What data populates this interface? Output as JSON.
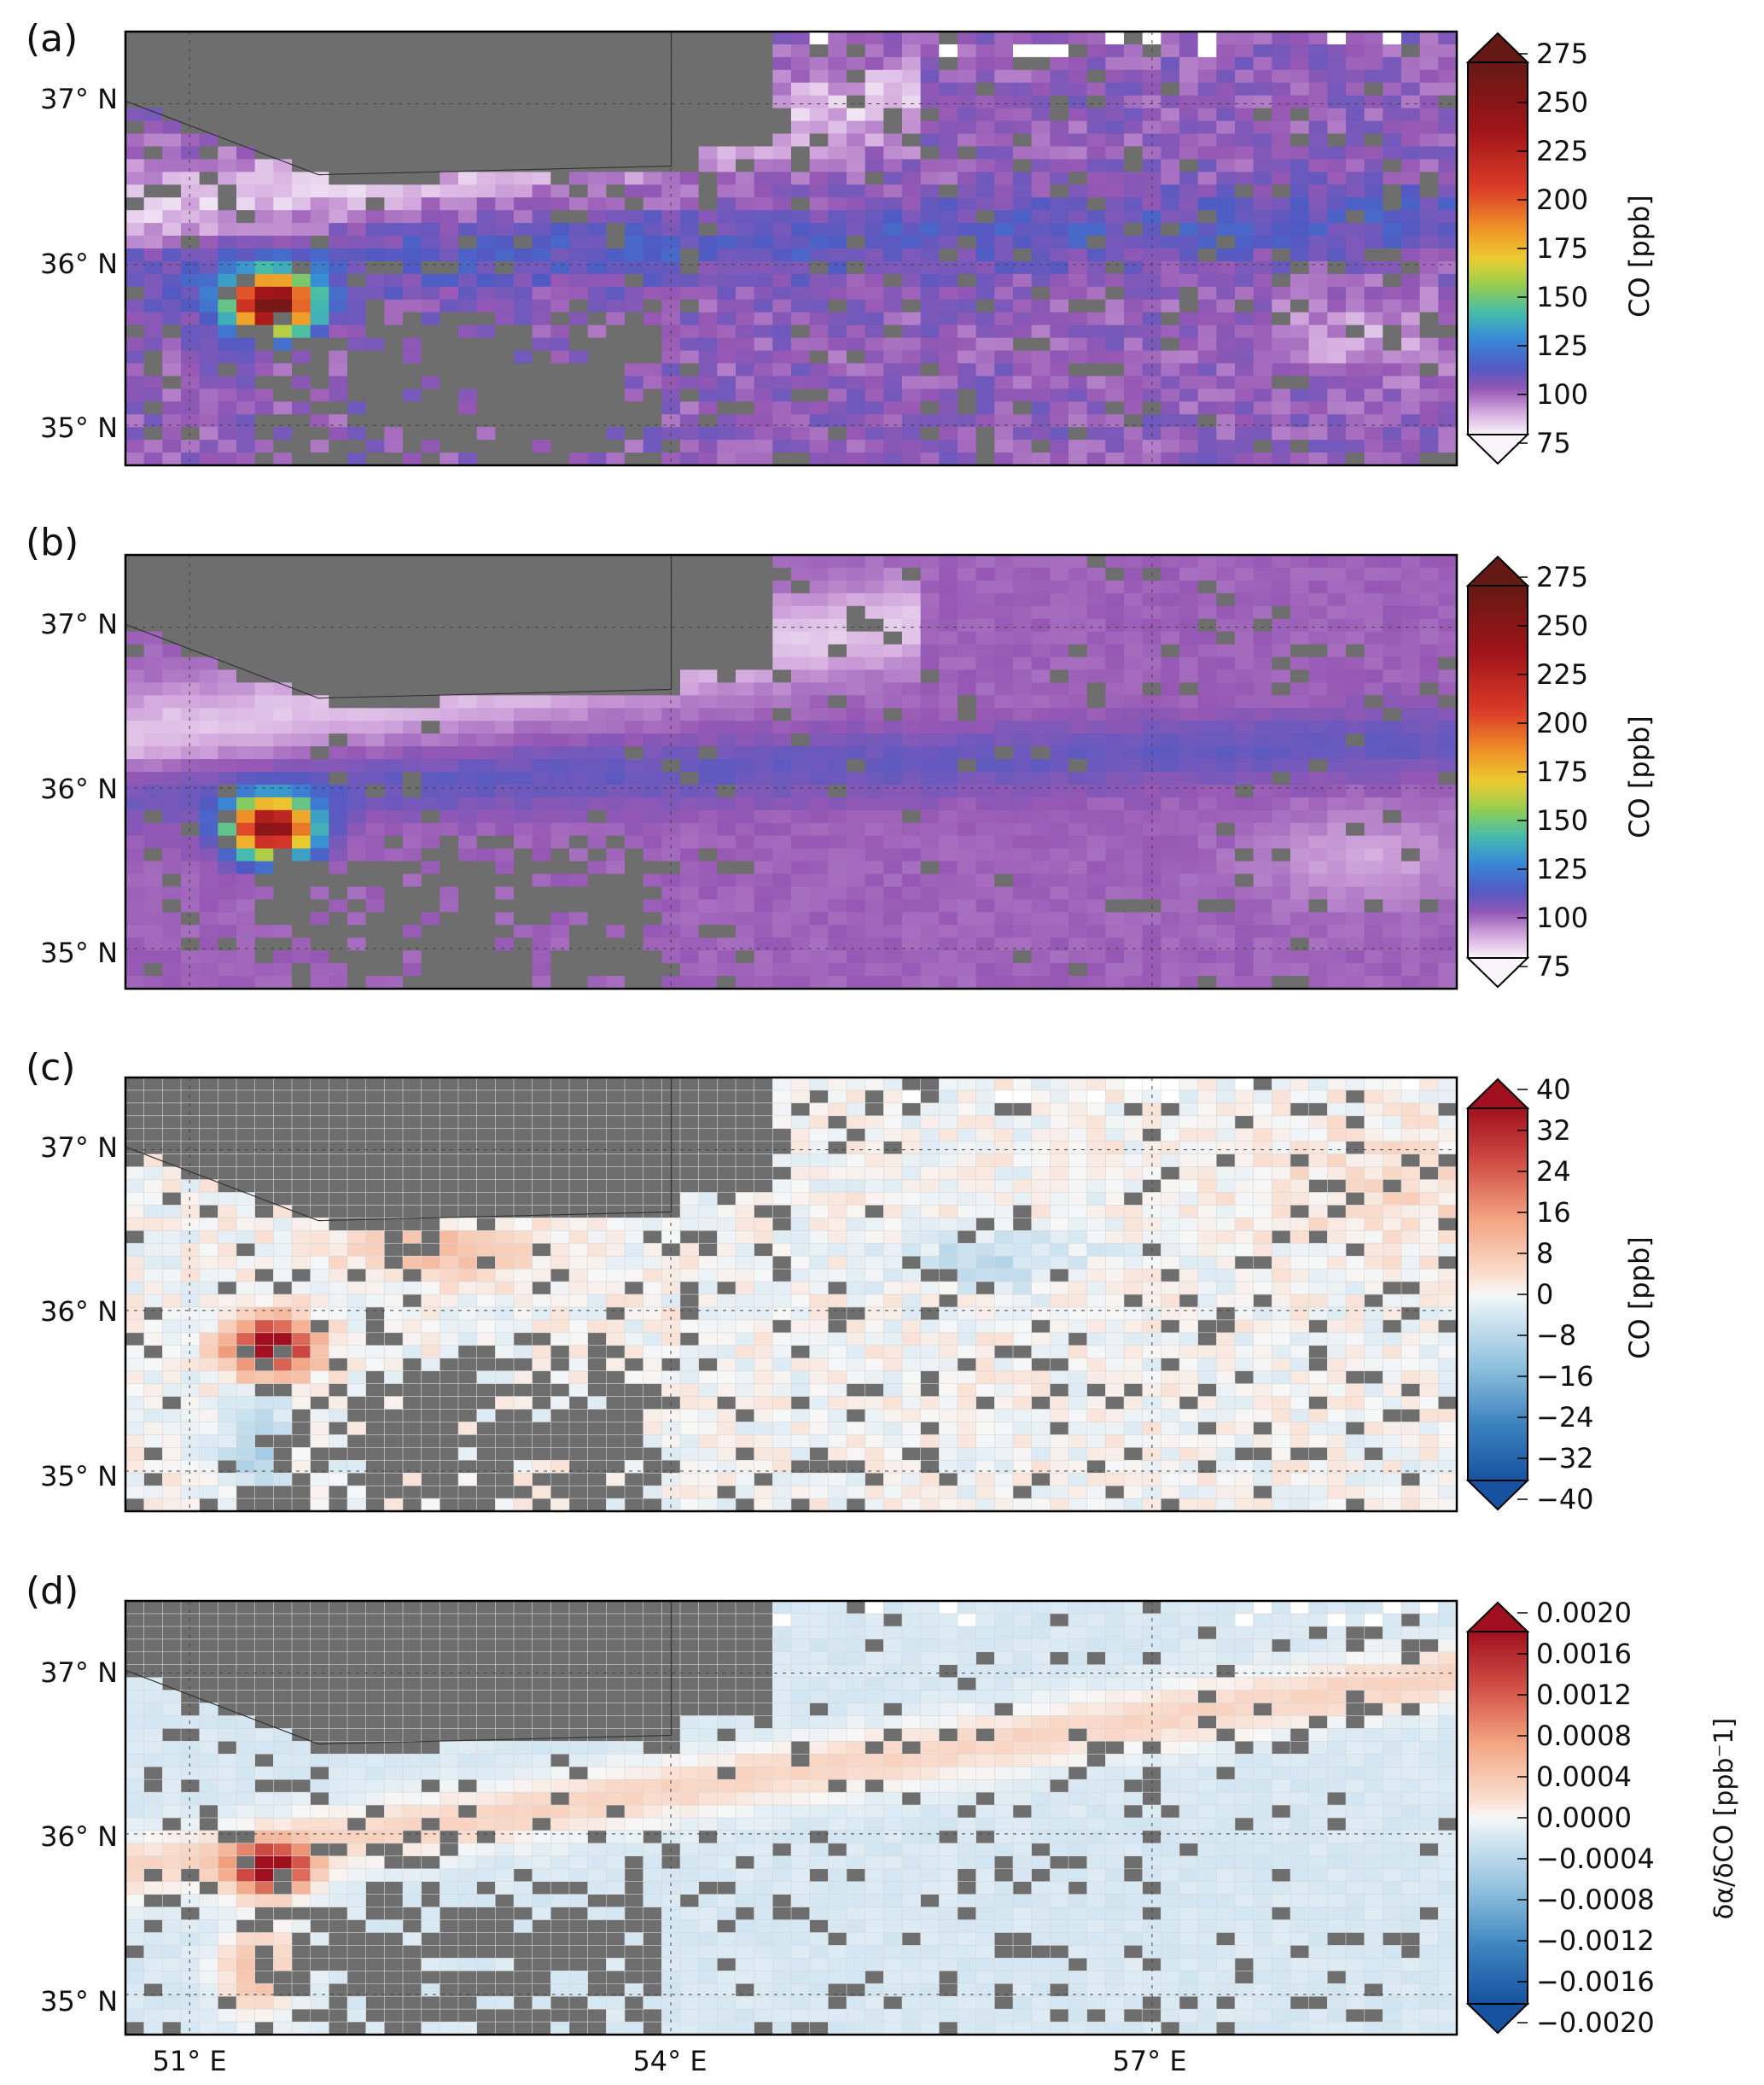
{
  "panels": [
    {
      "label": "(a)",
      "cbar_label": "CO [ppb]",
      "cbar_ticks": [
        "275",
        "250",
        "225",
        "200",
        "175",
        "150",
        "125",
        "100",
        "75"
      ],
      "colormap": "co",
      "range": [
        65,
        285
      ]
    },
    {
      "label": "(b)",
      "cbar_label": "CO [ppb]",
      "cbar_ticks": [
        "275",
        "250",
        "225",
        "200",
        "175",
        "150",
        "125",
        "100",
        "75"
      ],
      "colormap": "co",
      "range": [
        65,
        285
      ]
    },
    {
      "label": "(c)",
      "cbar_label": "CO [ppb]",
      "cbar_ticks": [
        "40",
        "32",
        "24",
        "16",
        "8",
        "0",
        "−8",
        "−16",
        "−24",
        "−32",
        "−40"
      ],
      "colormap": "diverging",
      "range": [
        -40,
        40
      ]
    },
    {
      "label": "(d)",
      "cbar_label": "δα/δCO  [ppb⁻1]",
      "cbar_ticks": [
        "0.0020",
        "0.0016",
        "0.0012",
        "0.0008",
        "0.0004",
        "0.0000",
        "−0.0004",
        "−0.0008",
        "−0.0012",
        "−0.0016",
        "−0.0020"
      ],
      "colormap": "diverging",
      "range": [
        -0.002,
        0.002
      ]
    }
  ],
  "lat_ticks": [
    "37° N",
    "36° N",
    "35° N"
  ],
  "lon_ticks": [
    "51° E",
    "54° E",
    "57° E"
  ],
  "colors": {
    "missing": "#6e6e6e",
    "land_border": "#333333",
    "frame": "#000000",
    "grid": "#444444"
  },
  "map_extent": {
    "lon_min": 50.6,
    "lon_max": 58.9,
    "lat_min": 34.75,
    "lat_max": 37.45
  }
}
